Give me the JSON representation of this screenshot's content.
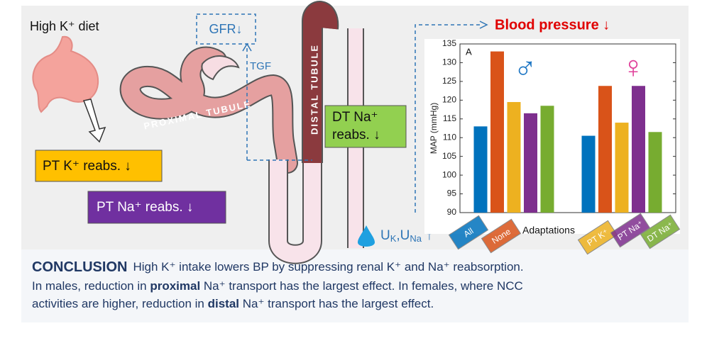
{
  "diet": "High K⁺ diet",
  "gfr": "GFR↓",
  "tgf": "TGF",
  "proximal_label": "PROXIMAL TUBULE",
  "distal_label": "DISTAL TUBULE",
  "pt_k": "PT K⁺ reabs. ↓",
  "pt_na": "PT Na⁺ reabs. ↓",
  "dt_na": [
    "DT Na⁺",
    "reabs. ↓"
  ],
  "blood_pressure": "Blood pressure ↓",
  "urine": [
    "U",
    "K",
    ",U",
    "Na",
    "↑"
  ],
  "conclusion": {
    "heading": "CONCLUSION",
    "lines": [
      [
        "High K⁺ intake lowers BP by suppressing renal K⁺ and Na⁺ reabsorption."
      ],
      [
        "In males, reduction in ",
        "proximal",
        " Na⁺ transport has the largest effect. In females, where NCC"
      ],
      [
        "activities are higher, reduction in ",
        "distal",
        " Na⁺ transport has the largest effect."
      ]
    ]
  },
  "chart_data": {
    "type": "bar",
    "panel_label": "A",
    "ylabel": "MAP (mmHg)",
    "xlabel": "Adaptations",
    "categories": [
      "♂",
      "♀"
    ],
    "category_colors": [
      "#1f77c4",
      "#e0409a"
    ],
    "ylim": [
      90,
      135
    ],
    "yticks": [
      90,
      95,
      100,
      105,
      110,
      115,
      120,
      125,
      130,
      135
    ],
    "series": [
      {
        "name": "All",
        "color": "#0072bd",
        "values": [
          113,
          110.5
        ]
      },
      {
        "name": "None",
        "color": "#d95319",
        "values": [
          133,
          123.8
        ]
      },
      {
        "name": "PT K⁺",
        "color": "#edb120",
        "values": [
          119.5,
          114
        ]
      },
      {
        "name": "PT Na⁺",
        "color": "#7e2f8e",
        "values": [
          116.5,
          123.8
        ]
      },
      {
        "name": "DT Na⁺",
        "color": "#77ac30",
        "values": [
          118.5,
          111.5
        ]
      }
    ]
  }
}
